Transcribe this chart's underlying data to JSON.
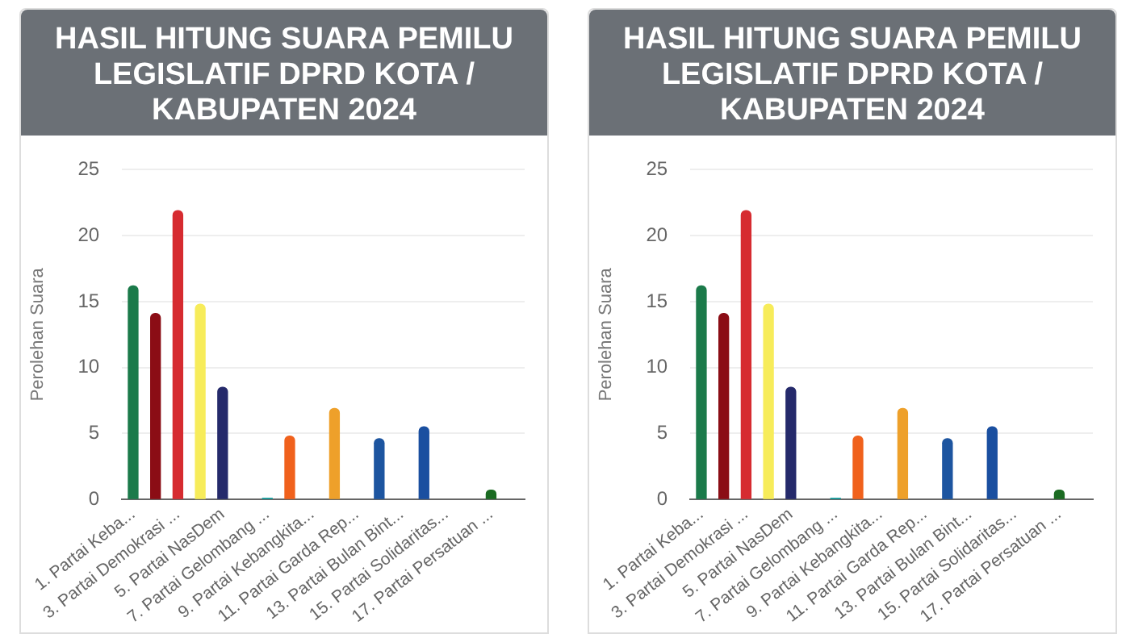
{
  "chart_data": [
    {
      "type": "bar",
      "title": "HASIL HITUNG SUARA PEMILU LEGISLATIF DPRD KOTA / KABUPATEN 2024",
      "ylabel": "Perolehan Suara",
      "categories": [
        "1. Partai Keba...",
        null,
        "3. Partai Demokrasi ...",
        null,
        "5. Partai NasDem",
        null,
        "7. Partai Gelombang ...",
        null,
        "9. Partai Kebangkita...",
        null,
        "11. Partai Garda Rep...",
        null,
        "13. Partai Bulan Bint...",
        null,
        "15. Partai Solidaritas...",
        null,
        "17. Partai Persatuan ...",
        null
      ],
      "values": [
        16.2,
        14.1,
        21.9,
        14.8,
        8.5,
        null,
        0.1,
        4.8,
        null,
        6.9,
        null,
        4.6,
        null,
        5.5,
        null,
        null,
        0.7,
        null
      ],
      "colors": [
        "#1b7a4a",
        "#8b0d15",
        "#d62b30",
        "#f7ec5a",
        "#252a6b",
        "#888888",
        "#1aa3a3",
        "#f0611c",
        "#888888",
        "#eea02a",
        "#888888",
        "#1d55a0",
        "#888888",
        "#1a4fa0",
        "#888888",
        "#888888",
        "#1b6b22",
        "#888888"
      ],
      "ylim": [
        0,
        25
      ],
      "yticks": [
        0,
        5,
        10,
        15,
        20,
        25
      ],
      "grid": "y",
      "legend": false
    },
    {
      "type": "bar",
      "title": "HASIL HITUNG SUARA PEMILU LEGISLATIF DPRD KOTA / KABUPATEN 2024",
      "ylabel": "Perolehan Suara",
      "categories": [
        "1. Partai Keba...",
        null,
        "3. Partai Demokrasi ...",
        null,
        "5. Partai NasDem",
        null,
        "7. Partai Gelombang ...",
        null,
        "9. Partai Kebangkita...",
        null,
        "11. Partai Garda Rep...",
        null,
        "13. Partai Bulan Bint...",
        null,
        "15. Partai Solidaritas...",
        null,
        "17. Partai Persatuan ...",
        null
      ],
      "values": [
        16.2,
        14.1,
        21.9,
        14.8,
        8.5,
        null,
        0.1,
        4.8,
        null,
        6.9,
        null,
        4.6,
        null,
        5.5,
        null,
        null,
        0.7,
        null
      ],
      "colors": [
        "#1b7a4a",
        "#8b0d15",
        "#d62b30",
        "#f7ec5a",
        "#252a6b",
        "#888888",
        "#1aa3a3",
        "#f0611c",
        "#888888",
        "#eea02a",
        "#888888",
        "#1d55a0",
        "#888888",
        "#1a4fa0",
        "#888888",
        "#888888",
        "#1b6b22",
        "#888888"
      ],
      "ylim": [
        0,
        25
      ],
      "yticks": [
        0,
        5,
        10,
        15,
        20,
        25
      ],
      "grid": "y",
      "legend": false
    }
  ]
}
